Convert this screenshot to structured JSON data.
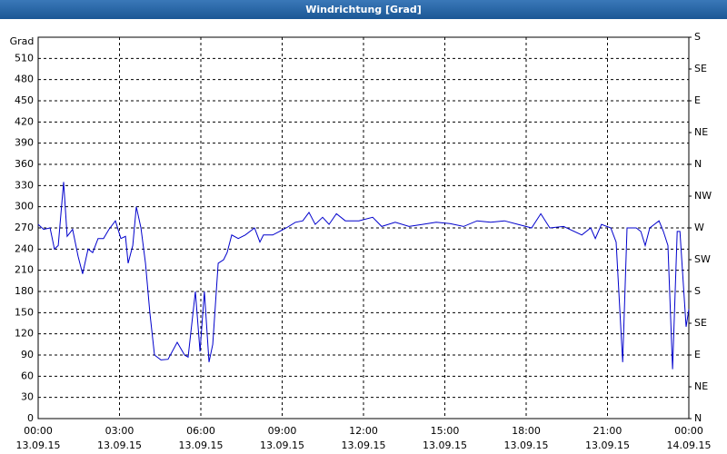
{
  "chart_data": {
    "type": "line",
    "title": "Windrichtung [Grad]",
    "y_label": "Grad",
    "x": [
      0,
      0.2,
      0.44,
      0.6,
      0.74,
      0.94,
      1.07,
      1.27,
      1.47,
      1.64,
      1.84,
      2.01,
      2.21,
      2.41,
      2.61,
      2.85,
      3.05,
      3.22,
      3.32,
      3.49,
      3.62,
      3.79,
      3.96,
      4.12,
      4.29,
      4.53,
      4.79,
      5.13,
      5.4,
      5.53,
      5.8,
      5.97,
      6.13,
      6.3,
      6.44,
      6.64,
      6.84,
      6.97,
      7.14,
      7.38,
      7.64,
      7.98,
      8.18,
      8.31,
      8.65,
      9.15,
      9.49,
      9.76,
      9.99,
      10.22,
      10.49,
      10.73,
      11.0,
      11.33,
      11.83,
      12.34,
      12.67,
      13.17,
      13.68,
      14.18,
      14.68,
      15.19,
      15.69,
      16.19,
      16.69,
      17.2,
      17.7,
      18.2,
      18.54,
      18.87,
      19.38,
      20.05,
      20.38,
      20.55,
      20.78,
      21.12,
      21.32,
      21.56,
      21.72,
      22.06,
      22.23,
      22.39,
      22.56,
      22.9,
      23.06,
      23.23,
      23.4,
      23.57,
      23.67,
      23.9,
      24
    ],
    "series": [
      {
        "color": "#0000cc",
        "values": [
          275,
          268,
          270,
          240,
          245,
          335,
          258,
          268,
          230,
          205,
          240,
          235,
          255,
          255,
          268,
          280,
          255,
          258,
          220,
          245,
          300,
          270,
          220,
          150,
          90,
          83,
          84,
          108,
          90,
          87,
          180,
          95,
          180,
          80,
          105,
          220,
          225,
          235,
          260,
          255,
          260,
          270,
          250,
          260,
          260,
          270,
          278,
          280,
          292,
          275,
          285,
          275,
          290,
          280,
          280,
          285,
          272,
          278,
          272,
          275,
          278,
          276,
          272,
          280,
          278,
          280,
          275,
          270,
          290,
          270,
          272,
          260,
          270,
          255,
          275,
          270,
          250,
          80,
          270,
          270,
          265,
          245,
          270,
          280,
          265,
          245,
          70,
          265,
          265,
          130,
          155
        ]
      }
    ],
    "xlim": [
      0,
      24
    ],
    "xticks": [
      {
        "value": 0,
        "label": "00:00"
      },
      {
        "value": 3,
        "label": "03:00"
      },
      {
        "value": 6,
        "label": "06:00"
      },
      {
        "value": 9,
        "label": "09:00"
      },
      {
        "value": 12,
        "label": "12:00"
      },
      {
        "value": 15,
        "label": "15:00"
      },
      {
        "value": 18,
        "label": "18:00"
      },
      {
        "value": 21,
        "label": "21:00"
      },
      {
        "value": 24,
        "label": "00:00"
      }
    ],
    "xtick_dates": [
      "13.09.15",
      "13.09.15",
      "13.09.15",
      "13.09.15",
      "13.09.15",
      "13.09.15",
      "13.09.15",
      "13.09.15",
      "14.09.15"
    ],
    "ylim": [
      0,
      540
    ],
    "yticks": [
      0,
      30,
      60,
      90,
      120,
      150,
      180,
      210,
      240,
      270,
      300,
      330,
      360,
      390,
      420,
      450,
      480,
      510
    ],
    "y2lim": [
      0,
      540
    ],
    "y2ticks": [
      {
        "value": 0,
        "label": "N"
      },
      {
        "value": 45,
        "label": "NE"
      },
      {
        "value": 90,
        "label": "E"
      },
      {
        "value": 135,
        "label": "SE"
      },
      {
        "value": 180,
        "label": "S"
      },
      {
        "value": 225,
        "label": "SW"
      },
      {
        "value": 270,
        "label": "W"
      },
      {
        "value": 315,
        "label": "NW"
      },
      {
        "value": 360,
        "label": "N"
      },
      {
        "value": 405,
        "label": "NE"
      },
      {
        "value": 450,
        "label": "E"
      },
      {
        "value": 495,
        "label": "SE"
      },
      {
        "value": 540,
        "label": "S"
      }
    ],
    "grid": true
  }
}
